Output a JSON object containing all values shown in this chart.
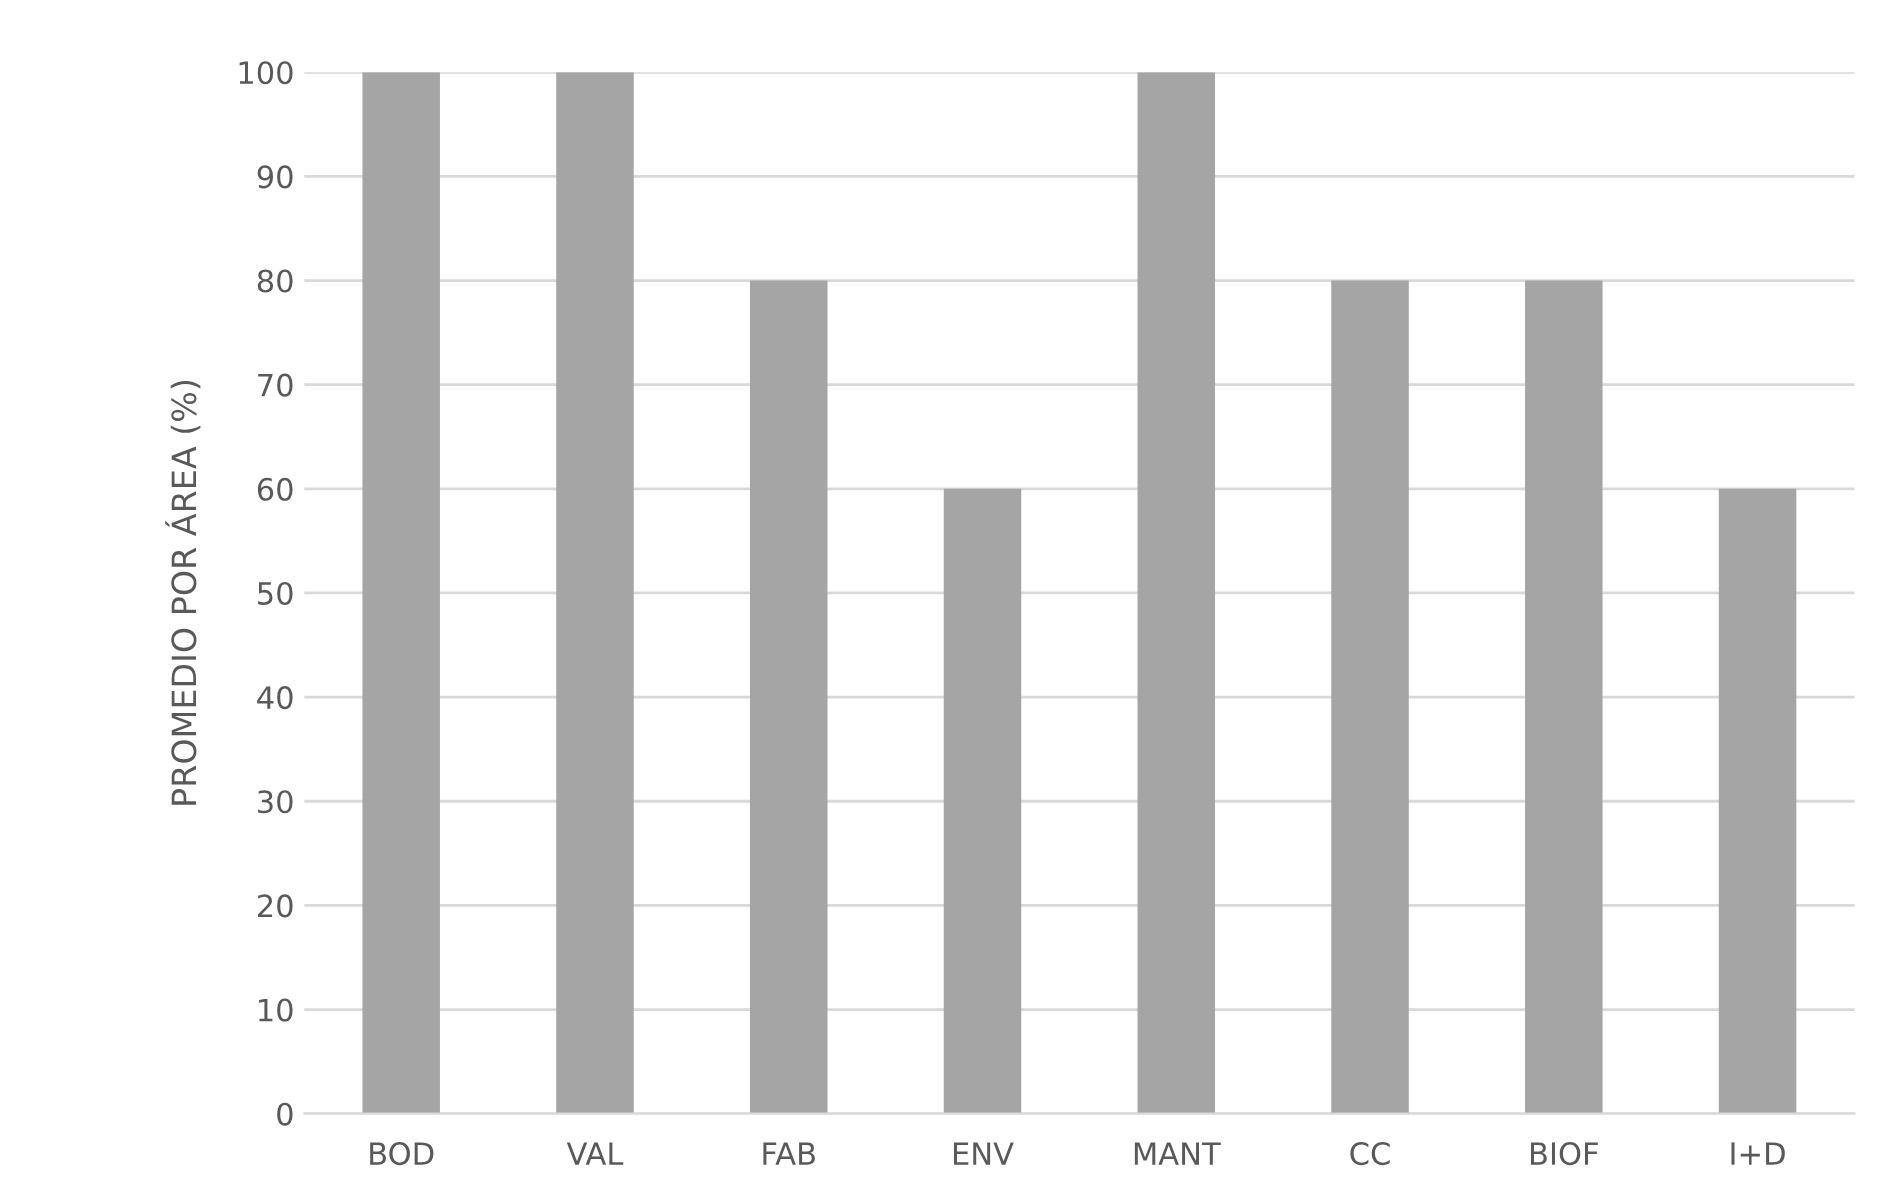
{
  "chart_data": {
    "type": "bar",
    "ylabel": "PROMEDIO POR ÁREA (%)",
    "categories": [
      "BOD",
      "VAL",
      "FAB",
      "ENV",
      "MANT",
      "CC",
      "BIOF",
      "I+D"
    ],
    "values": [
      100,
      100,
      80,
      60,
      100,
      80,
      80,
      60
    ],
    "color": "#a5a5a5",
    "ylim": [
      0,
      100
    ],
    "yticks": [
      0,
      10,
      20,
      30,
      40,
      50,
      60,
      70,
      80,
      90,
      100
    ],
    "grid": "y"
  }
}
